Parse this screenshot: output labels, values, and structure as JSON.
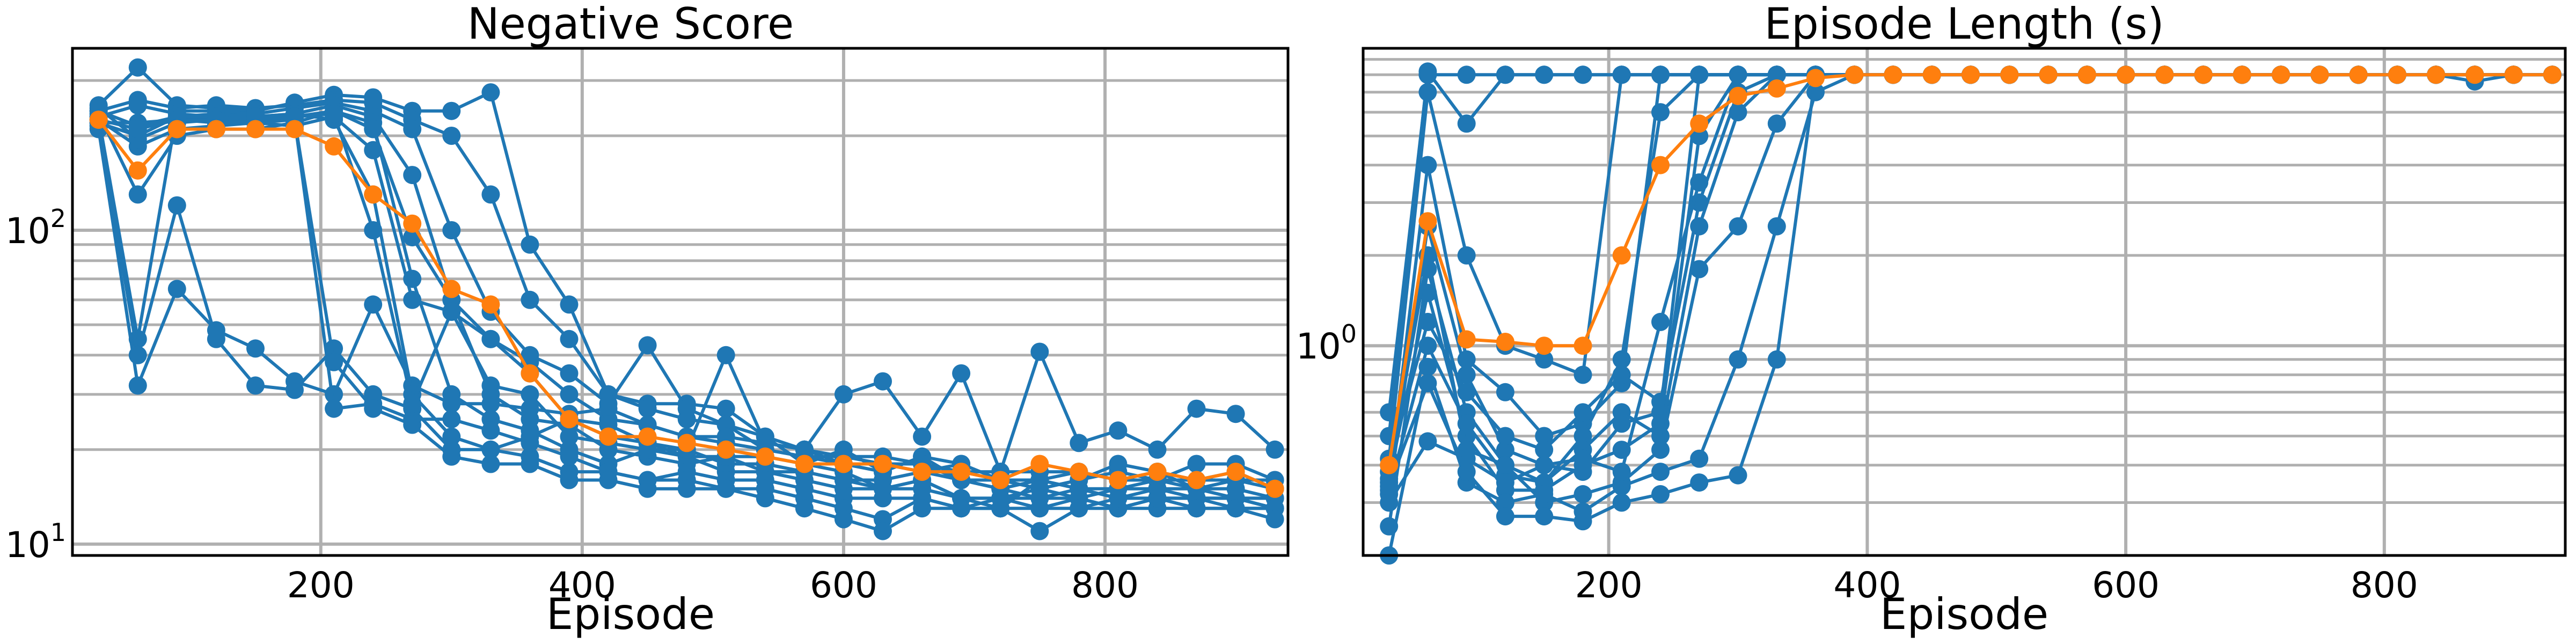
{
  "chart_data": [
    {
      "type": "line",
      "title": "Negative Score",
      "xlabel": "Episode",
      "ylabel": "",
      "yscale": "log",
      "xlim": [
        10,
        940
      ],
      "ylim": [
        9.2,
        380
      ],
      "grid": true,
      "x_ticks": [
        200,
        400,
        600,
        800
      ],
      "y_ticks": [
        {
          "value": 10,
          "base": "10",
          "exp": "1"
        },
        {
          "value": 100,
          "base": "10",
          "exp": "2"
        }
      ],
      "x": [
        30,
        60,
        90,
        120,
        150,
        180,
        210,
        240,
        270,
        300,
        330,
        360,
        390,
        420,
        450,
        480,
        510,
        540,
        570,
        600,
        630,
        660,
        690,
        720,
        750,
        780,
        810,
        840,
        870,
        900,
        930
      ],
      "series": [
        {
          "color": "#1f77b4",
          "values": [
            250,
            330,
            250,
            245,
            240,
            255,
            270,
            265,
            240,
            240,
            275,
            90,
            58,
            30,
            28,
            28,
            27,
            22,
            18,
            20,
            17,
            19,
            16,
            16,
            15,
            16,
            17,
            16,
            18,
            18,
            16
          ]
        },
        {
          "color": "#1f77b4",
          "values": [
            240,
            260,
            245,
            250,
            245,
            250,
            260,
            255,
            225,
            200,
            130,
            60,
            45,
            30,
            27,
            25,
            24,
            20,
            19,
            18,
            18,
            17,
            18,
            16,
            16,
            17,
            16,
            17,
            16,
            17,
            15
          ]
        },
        {
          "color": "#1f77b4",
          "values": [
            230,
            45,
            240,
            240,
            235,
            245,
            255,
            240,
            210,
            100,
            55,
            40,
            35,
            28,
            43,
            27,
            24,
            22,
            20,
            18,
            17,
            19,
            18,
            16,
            15,
            16,
            18,
            17,
            15,
            16,
            16
          ]
        },
        {
          "color": "#1f77b4",
          "values": [
            220,
            200,
            230,
            235,
            230,
            235,
            250,
            230,
            150,
            60,
            45,
            38,
            30,
            25,
            24,
            22,
            21,
            20,
            19,
            19,
            18,
            18,
            17,
            17,
            17,
            17,
            16,
            16,
            16,
            16,
            15
          ]
        },
        {
          "color": "#1f77b4",
          "values": [
            210,
            32,
            65,
            48,
            42,
            33,
            30,
            58,
            32,
            28,
            28,
            27,
            26,
            27,
            24,
            22,
            22,
            21,
            20,
            19,
            19,
            18,
            16,
            15,
            16,
            15,
            14,
            15,
            15,
            14,
            13
          ]
        },
        {
          "color": "#1f77b4",
          "values": [
            215,
            40,
            120,
            45,
            32,
            31,
            42,
            30,
            27,
            20,
            20,
            22,
            25,
            24,
            21,
            19,
            19,
            19,
            18,
            17,
            15,
            16,
            14,
            13,
            16,
            15,
            14,
            14,
            14,
            13,
            13
          ]
        },
        {
          "color": "#1f77b4",
          "values": [
            235,
            130,
            200,
            210,
            210,
            220,
            240,
            220,
            70,
            30,
            25,
            23,
            20,
            18,
            20,
            19,
            17,
            17,
            16,
            15,
            15,
            16,
            14,
            14,
            15,
            14,
            13,
            14,
            14,
            14,
            14
          ]
        },
        {
          "color": "#1f77b4",
          "values": [
            225,
            185,
            210,
            215,
            220,
            215,
            230,
            180,
            60,
            55,
            45,
            35,
            25,
            22,
            21,
            20,
            18,
            18,
            17,
            16,
            16,
            17,
            16,
            15,
            14,
            15,
            15,
            16,
            15,
            15,
            14
          ]
        },
        {
          "color": "#1f77b4",
          "values": [
            245,
            195,
            220,
            225,
            225,
            230,
            240,
            210,
            95,
            60,
            30,
            25,
            24,
            20,
            19,
            18,
            19,
            17,
            17,
            16,
            15,
            15,
            14,
            14,
            14,
            14,
            15,
            15,
            14,
            14,
            14
          ]
        },
        {
          "color": "#1f77b4",
          "values": [
            230,
            250,
            235,
            230,
            230,
            235,
            225,
            130,
            30,
            22,
            20,
            19,
            17,
            17,
            16,
            17,
            16,
            16,
            15,
            14,
            14,
            14,
            13,
            13,
            13,
            13,
            13,
            13,
            13,
            13,
            13
          ]
        },
        {
          "color": "#1f77b4",
          "values": [
            240,
            215,
            230,
            230,
            225,
            225,
            27,
            28,
            25,
            25,
            23,
            21,
            19,
            17,
            16,
            16,
            15,
            15,
            14,
            13,
            12,
            14,
            13,
            14,
            13,
            14,
            13,
            14,
            14,
            14,
            13
          ]
        },
        {
          "color": "#1f77b4",
          "values": [
            220,
            220,
            225,
            220,
            220,
            225,
            38,
            27,
            24,
            19,
            18,
            18,
            16,
            16,
            15,
            15,
            15,
            14,
            13,
            12,
            11,
            13,
            13,
            13,
            11,
            13,
            14,
            14,
            13,
            13,
            12
          ]
        },
        {
          "color": "#1f77b4",
          "values": [
            225,
            210,
            225,
            225,
            230,
            230,
            235,
            100,
            28,
            55,
            32,
            30,
            22,
            21,
            20,
            20,
            40,
            21,
            20,
            30,
            33,
            22,
            35,
            17,
            41,
            21,
            23,
            20,
            27,
            26,
            20
          ]
        },
        {
          "color": "#ff7f0e",
          "values": [
            225,
            155,
            210,
            210,
            210,
            210,
            185,
            130,
            105,
            65,
            58,
            35,
            25,
            22,
            22,
            21,
            20,
            19,
            18,
            18,
            18,
            17,
            17,
            16,
            18,
            17,
            16,
            17,
            16,
            17,
            15
          ]
        }
      ]
    },
    {
      "type": "line",
      "title": "Episode Length (s)",
      "xlabel": "Episode",
      "ylabel": "",
      "yscale": "log",
      "xlim": [
        10,
        940
      ],
      "ylim": [
        0.2,
        9.8
      ],
      "grid": true,
      "x_ticks": [
        200,
        400,
        600,
        800
      ],
      "y_ticks": [
        {
          "value": 1,
          "base": "10",
          "exp": "0"
        }
      ],
      "x": [
        30,
        60,
        90,
        120,
        150,
        180,
        210,
        240,
        270,
        300,
        330,
        360,
        390,
        420,
        450,
        480,
        510,
        540,
        570,
        600,
        630,
        660,
        690,
        720,
        750,
        780,
        810,
        840,
        870,
        900,
        930
      ],
      "series": [
        {
          "color": "#1f77b4",
          "values": [
            0.6,
            8.0,
            8.0,
            8.0,
            8.0,
            8.0,
            8.0,
            8.0,
            8.0,
            8.0,
            8.0,
            8.0,
            8.0,
            8.0,
            8.0,
            8.0,
            8.0,
            8.0,
            8.0,
            8.0,
            8.0,
            8.0,
            8.0,
            8.0,
            8.0,
            8.0,
            8.0,
            8.0,
            8.0,
            8.0,
            8.0
          ]
        },
        {
          "color": "#1f77b4",
          "values": [
            0.5,
            8.2,
            5.5,
            8.0,
            8.0,
            8.0,
            8.0,
            8.0,
            8.0,
            8.0,
            8.0,
            8.0,
            8.0,
            8.0,
            8.0,
            8.0,
            8.0,
            8.0,
            8.0,
            8.0,
            8.0,
            8.0,
            8.0,
            8.0,
            8.0,
            8.0,
            8.0,
            8.0,
            8.0,
            8.0,
            8.0
          ]
        },
        {
          "color": "#1f77b4",
          "values": [
            0.42,
            7.0,
            2.0,
            1.0,
            0.9,
            0.8,
            8.0,
            8.0,
            8.0,
            8.0,
            8.0,
            8.0,
            8.0,
            8.0,
            8.0,
            8.0,
            8.0,
            8.0,
            8.0,
            8.0,
            8.0,
            8.0,
            8.0,
            8.0,
            8.0,
            8.0,
            8.0,
            8.0,
            8.0,
            8.0,
            8.0
          ]
        },
        {
          "color": "#1f77b4",
          "values": [
            0.35,
            4.0,
            0.9,
            0.7,
            0.5,
            0.55,
            0.75,
            8.0,
            8.0,
            8.0,
            8.0,
            8.0,
            8.0,
            8.0,
            8.0,
            8.0,
            8.0,
            8.0,
            8.0,
            8.0,
            8.0,
            8.0,
            8.0,
            8.0,
            8.0,
            8.0,
            8.0,
            8.0,
            8.0,
            8.0,
            8.0
          ]
        },
        {
          "color": "#1f77b4",
          "values": [
            0.32,
            2.5,
            0.8,
            0.45,
            0.4,
            0.38,
            0.55,
            0.6,
            8.0,
            8.0,
            8.0,
            8.0,
            8.0,
            8.0,
            8.0,
            8.0,
            8.0,
            8.0,
            8.0,
            8.0,
            8.0,
            8.0,
            8.0,
            8.0,
            8.0,
            8.0,
            8.0,
            8.0,
            8.0,
            8.0,
            8.0
          ]
        },
        {
          "color": "#1f77b4",
          "values": [
            0.25,
            1.8,
            0.6,
            0.4,
            0.35,
            0.5,
            0.9,
            6.0,
            8.0,
            8.0,
            8.0,
            8.0,
            8.0,
            8.0,
            8.0,
            8.0,
            8.0,
            8.0,
            8.0,
            8.0,
            8.0,
            8.0,
            8.0,
            8.0,
            8.0,
            8.0,
            8.0,
            8.0,
            8.0,
            8.0,
            8.0
          ]
        },
        {
          "color": "#1f77b4",
          "values": [
            0.36,
            1.5,
            0.5,
            0.33,
            0.33,
            0.4,
            0.45,
            0.55,
            5.0,
            8.0,
            8.0,
            8.0,
            8.0,
            8.0,
            8.0,
            8.0,
            8.0,
            8.0,
            8.0,
            8.0,
            8.0,
            8.0,
            8.0,
            8.0,
            8.0,
            8.0,
            8.0,
            8.0,
            8.0,
            8.0,
            8.0
          ]
        },
        {
          "color": "#1f77b4",
          "values": [
            0.4,
            1.2,
            0.7,
            0.5,
            0.45,
            0.6,
            0.8,
            0.65,
            3.0,
            7.0,
            8.0,
            8.0,
            8.0,
            8.0,
            8.0,
            8.0,
            8.0,
            8.0,
            8.0,
            8.0,
            8.0,
            8.0,
            8.0,
            8.0,
            8.0,
            8.0,
            8.0,
            8.0,
            8.0,
            8.0,
            8.0
          ]
        },
        {
          "color": "#1f77b4",
          "values": [
            0.33,
            1.0,
            0.55,
            0.37,
            0.35,
            0.45,
            0.6,
            0.5,
            2.5,
            6.0,
            8.0,
            8.0,
            8.0,
            8.0,
            8.0,
            8.0,
            8.0,
            8.0,
            8.0,
            8.0,
            8.0,
            8.0,
            8.0,
            8.0,
            8.0,
            8.0,
            8.0,
            8.0,
            8.0,
            8.0,
            8.0
          ]
        },
        {
          "color": "#1f77b4",
          "values": [
            0.38,
            2.0,
            0.45,
            0.4,
            0.3,
            0.32,
            0.35,
            0.45,
            1.8,
            2.5,
            5.5,
            8.0,
            8.0,
            8.0,
            8.0,
            8.0,
            8.0,
            8.0,
            8.0,
            8.0,
            8.0,
            8.0,
            8.0,
            8.0,
            8.0,
            8.0,
            8.0,
            8.0,
            8.0,
            8.0,
            8.0
          ]
        },
        {
          "color": "#1f77b4",
          "values": [
            0.2,
            0.85,
            0.35,
            0.3,
            0.32,
            0.28,
            0.34,
            0.38,
            0.42,
            0.9,
            2.5,
            7.0,
            8.0,
            8.0,
            8.0,
            8.0,
            8.0,
            8.0,
            8.0,
            8.0,
            8.0,
            8.0,
            8.0,
            8.0,
            8.0,
            8.0,
            8.0,
            8.0,
            8.0,
            8.0,
            8.0
          ]
        },
        {
          "color": "#1f77b4",
          "values": [
            0.3,
            0.48,
            0.42,
            0.35,
            0.4,
            0.42,
            0.38,
            1.2,
            3.5,
            8.0,
            8.0,
            8.0,
            8.0,
            8.0,
            8.0,
            8.0,
            8.0,
            8.0,
            8.0,
            8.0,
            8.0,
            8.0,
            8.0,
            8.0,
            8.0,
            8.0,
            8.0,
            8.0,
            8.0,
            8.0,
            8.0
          ]
        },
        {
          "color": "#1f77b4",
          "values": [
            0.34,
            0.75,
            0.38,
            0.27,
            0.27,
            0.26,
            0.3,
            0.32,
            0.35,
            0.37,
            0.9,
            8.0,
            8.0,
            8.0,
            8.0,
            8.0,
            8.0,
            8.0,
            8.0,
            8.0,
            8.0,
            8.0,
            8.0,
            8.0,
            8.0,
            8.0,
            8.0,
            8.0,
            7.6,
            8.0,
            8.0
          ]
        },
        {
          "color": "#ff7f0e",
          "values": [
            0.4,
            2.6,
            1.05,
            1.03,
            1.0,
            1.0,
            2.0,
            4.0,
            5.5,
            6.8,
            7.2,
            7.8,
            8.0,
            8.0,
            8.0,
            8.0,
            8.0,
            8.0,
            8.0,
            8.0,
            8.0,
            8.0,
            8.0,
            8.0,
            8.0,
            8.0,
            8.0,
            8.0,
            8.0,
            8.0,
            8.0
          ]
        }
      ]
    }
  ]
}
